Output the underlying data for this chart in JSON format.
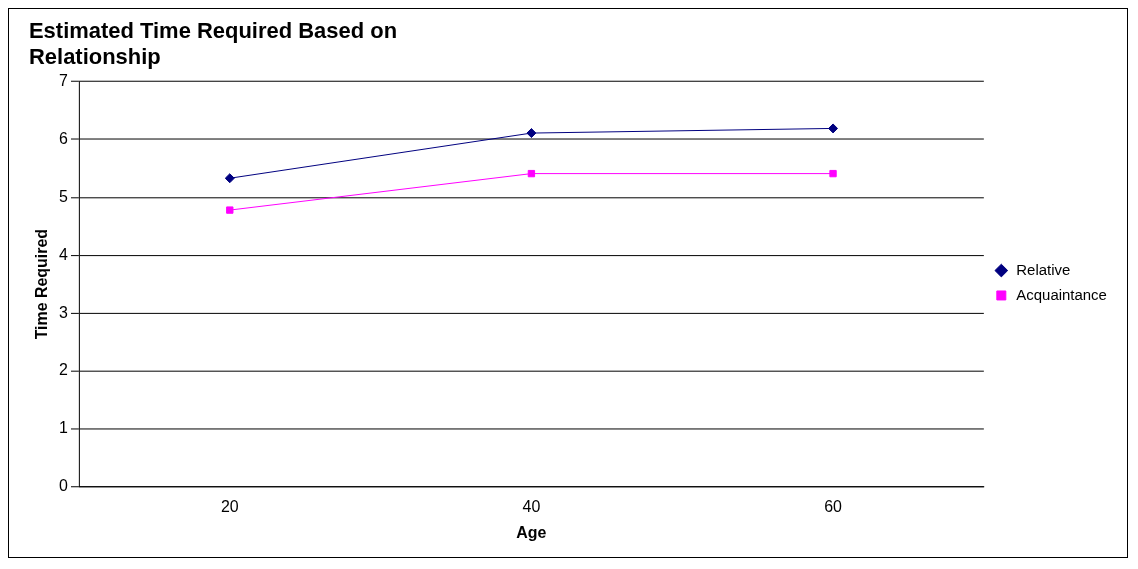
{
  "chart_data": {
    "type": "line",
    "title": [
      "Estimated Time Required Based on",
      "Relationship"
    ],
    "xlabel": "Age",
    "ylabel": "Time Required",
    "categories": [
      "20",
      "40",
      "60"
    ],
    "series": [
      {
        "name": "Relative",
        "color": "#000080",
        "marker": "diamond",
        "values": [
          5.33,
          6.11,
          6.19
        ]
      },
      {
        "name": "Acquaintance",
        "color": "#ff00ff",
        "marker": "square",
        "values": [
          4.78,
          5.41,
          5.41
        ]
      }
    ],
    "ylim": [
      0,
      7
    ],
    "yticks": [
      0,
      1,
      2,
      3,
      4,
      5,
      6,
      7
    ],
    "grid": "y",
    "legend": "right",
    "line_style": "solid"
  }
}
